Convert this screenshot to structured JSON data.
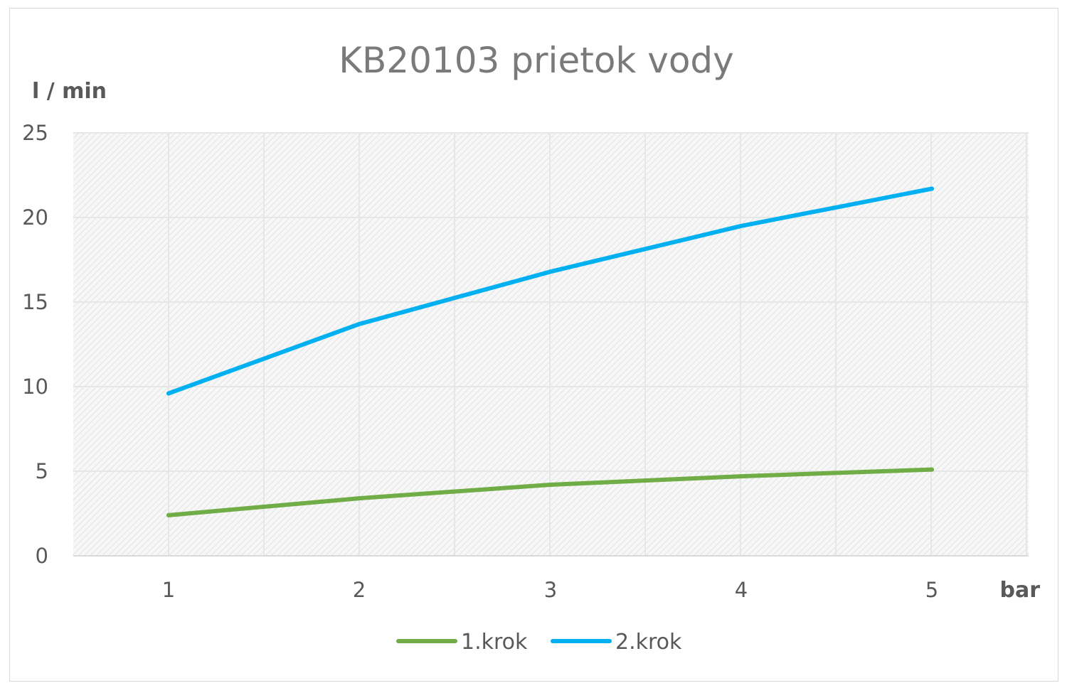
{
  "chart_data": {
    "type": "line",
    "title": "KB20103 prietok vody",
    "ylabel": "l / min",
    "xlabel": "bar",
    "x": [
      1,
      2,
      3,
      4,
      5
    ],
    "x_tick_labels": [
      "1",
      "2",
      "3",
      "4",
      "5"
    ],
    "ylim": [
      0,
      25
    ],
    "y_ticks": [
      0,
      5,
      10,
      15,
      20,
      25
    ],
    "y_tick_labels": [
      "0",
      "5",
      "10",
      "15",
      "20",
      "25"
    ],
    "grid": true,
    "legend_position": "bottom",
    "series": [
      {
        "name": "1.krok",
        "color": "#70ad47",
        "values": [
          2.4,
          3.4,
          4.2,
          4.7,
          5.1
        ]
      },
      {
        "name": "2.krok",
        "color": "#00b0f0",
        "values": [
          9.6,
          13.7,
          16.8,
          19.5,
          21.7
        ]
      }
    ],
    "colors": {
      "plot_background": "#f2f2f2",
      "gridline": "#e6e6e6",
      "text": "#595959",
      "title": "#7a7a7a"
    }
  }
}
